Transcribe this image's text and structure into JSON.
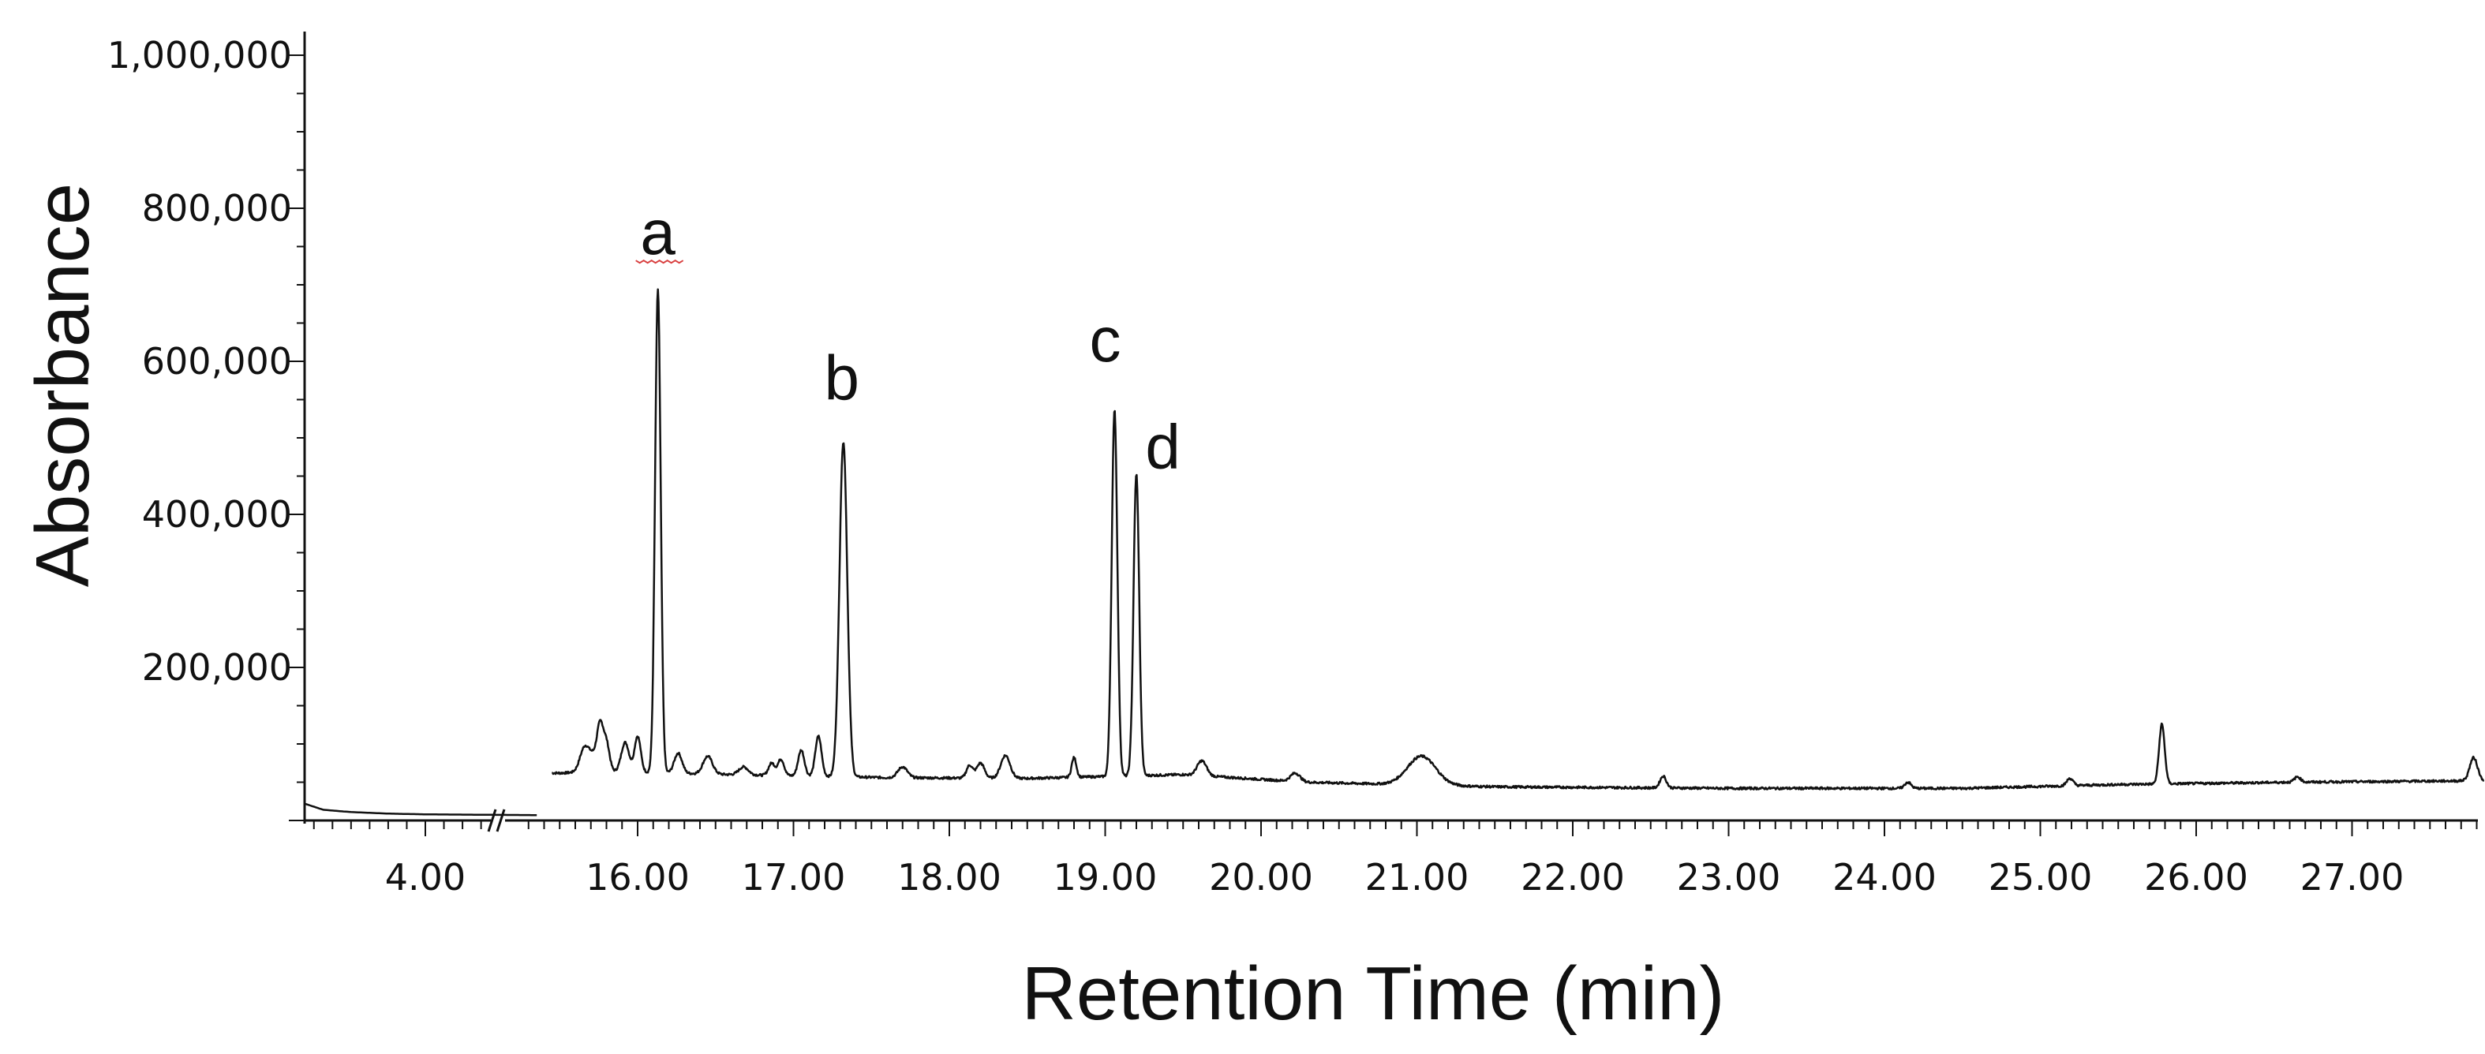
{
  "chart_data": {
    "type": "line",
    "xlabel": "Retention Time (min)",
    "ylabel": "Absorbance",
    "ylim": [
      0,
      1000000
    ],
    "y_ticks": [
      {
        "value": 200000,
        "label": "200,000"
      },
      {
        "value": 400000,
        "label": "400,000"
      },
      {
        "value": 600000,
        "label": "600,000"
      },
      {
        "value": 800000,
        "label": "800,000"
      },
      {
        "value": 1000000,
        "label": "1,000,000"
      }
    ],
    "x_axis_break": true,
    "x_segments": [
      {
        "range": [
          3.35,
          4.6
        ],
        "ticks": [
          "4.00"
        ]
      },
      {
        "range": [
          15.45,
          27.85
        ],
        "ticks": [
          "16.00",
          "17.00",
          "18.00",
          "19.00",
          "20.00",
          "21.00",
          "22.00",
          "23.00",
          "24.00",
          "25.00",
          "26.00",
          "27.00"
        ]
      }
    ],
    "baseline_segment1": [
      [
        3.35,
        22000
      ],
      [
        3.45,
        14000
      ],
      [
        3.6,
        11000
      ],
      [
        3.8,
        9000
      ],
      [
        4.0,
        8000
      ],
      [
        4.3,
        7500
      ],
      [
        4.6,
        7000
      ]
    ],
    "baseline_segment2": [
      [
        15.5,
        62000
      ],
      [
        15.8,
        64000
      ],
      [
        16.6,
        60000
      ],
      [
        17.6,
        56000
      ],
      [
        18.5,
        55000
      ],
      [
        19.5,
        60000
      ],
      [
        20.3,
        50000
      ],
      [
        21.5,
        44000
      ],
      [
        23.0,
        42000
      ],
      [
        24.5,
        42000
      ],
      [
        25.5,
        47000
      ],
      [
        26.6,
        50000
      ],
      [
        27.85,
        52000
      ]
    ],
    "peaks": [
      {
        "x": 15.66,
        "y": 95000,
        "w": 0.03
      },
      {
        "x": 15.72,
        "y": 82000,
        "w": 0.03
      },
      {
        "x": 15.76,
        "y": 118000,
        "w": 0.02
      },
      {
        "x": 15.8,
        "y": 100000,
        "w": 0.02
      },
      {
        "x": 15.92,
        "y": 102000,
        "w": 0.025
      },
      {
        "x": 16.0,
        "y": 110000,
        "w": 0.02
      },
      {
        "x": 16.13,
        "y": 693000,
        "w": 0.018
      },
      {
        "x": 16.26,
        "y": 88000,
        "w": 0.025
      },
      {
        "x": 16.45,
        "y": 84000,
        "w": 0.03
      },
      {
        "x": 16.68,
        "y": 70000,
        "w": 0.03
      },
      {
        "x": 16.86,
        "y": 75000,
        "w": 0.02
      },
      {
        "x": 16.92,
        "y": 80000,
        "w": 0.02
      },
      {
        "x": 17.05,
        "y": 92000,
        "w": 0.02
      },
      {
        "x": 17.16,
        "y": 110000,
        "w": 0.02
      },
      {
        "x": 17.32,
        "y": 495000,
        "w": 0.025
      },
      {
        "x": 17.7,
        "y": 70000,
        "w": 0.03
      },
      {
        "x": 18.13,
        "y": 72000,
        "w": 0.02
      },
      {
        "x": 18.2,
        "y": 75000,
        "w": 0.025
      },
      {
        "x": 18.36,
        "y": 85000,
        "w": 0.03
      },
      {
        "x": 18.8,
        "y": 82000,
        "w": 0.015
      },
      {
        "x": 19.06,
        "y": 538000,
        "w": 0.018
      },
      {
        "x": 19.2,
        "y": 453000,
        "w": 0.018
      },
      {
        "x": 19.62,
        "y": 78000,
        "w": 0.03
      },
      {
        "x": 20.22,
        "y": 62000,
        "w": 0.03
      },
      {
        "x": 21.03,
        "y": 84000,
        "w": 0.09
      },
      {
        "x": 22.58,
        "y": 58000,
        "w": 0.02
      },
      {
        "x": 24.15,
        "y": 50000,
        "w": 0.02
      },
      {
        "x": 25.19,
        "y": 55000,
        "w": 0.02
      },
      {
        "x": 25.78,
        "y": 126000,
        "w": 0.018
      },
      {
        "x": 26.65,
        "y": 57000,
        "w": 0.02
      },
      {
        "x": 27.78,
        "y": 82000,
        "w": 0.025
      }
    ],
    "annotations": [
      {
        "text": "a",
        "x": 16.13,
        "y": 740000,
        "underline": true
      },
      {
        "text": "b",
        "x": 17.31,
        "y": 550000
      },
      {
        "text": "c",
        "x": 19.0,
        "y": 600000
      },
      {
        "text": "d",
        "x": 19.37,
        "y": 460000
      }
    ],
    "colors": {
      "line": "#111111",
      "axis": "#111111",
      "annotation_underline": "#d94040"
    }
  }
}
